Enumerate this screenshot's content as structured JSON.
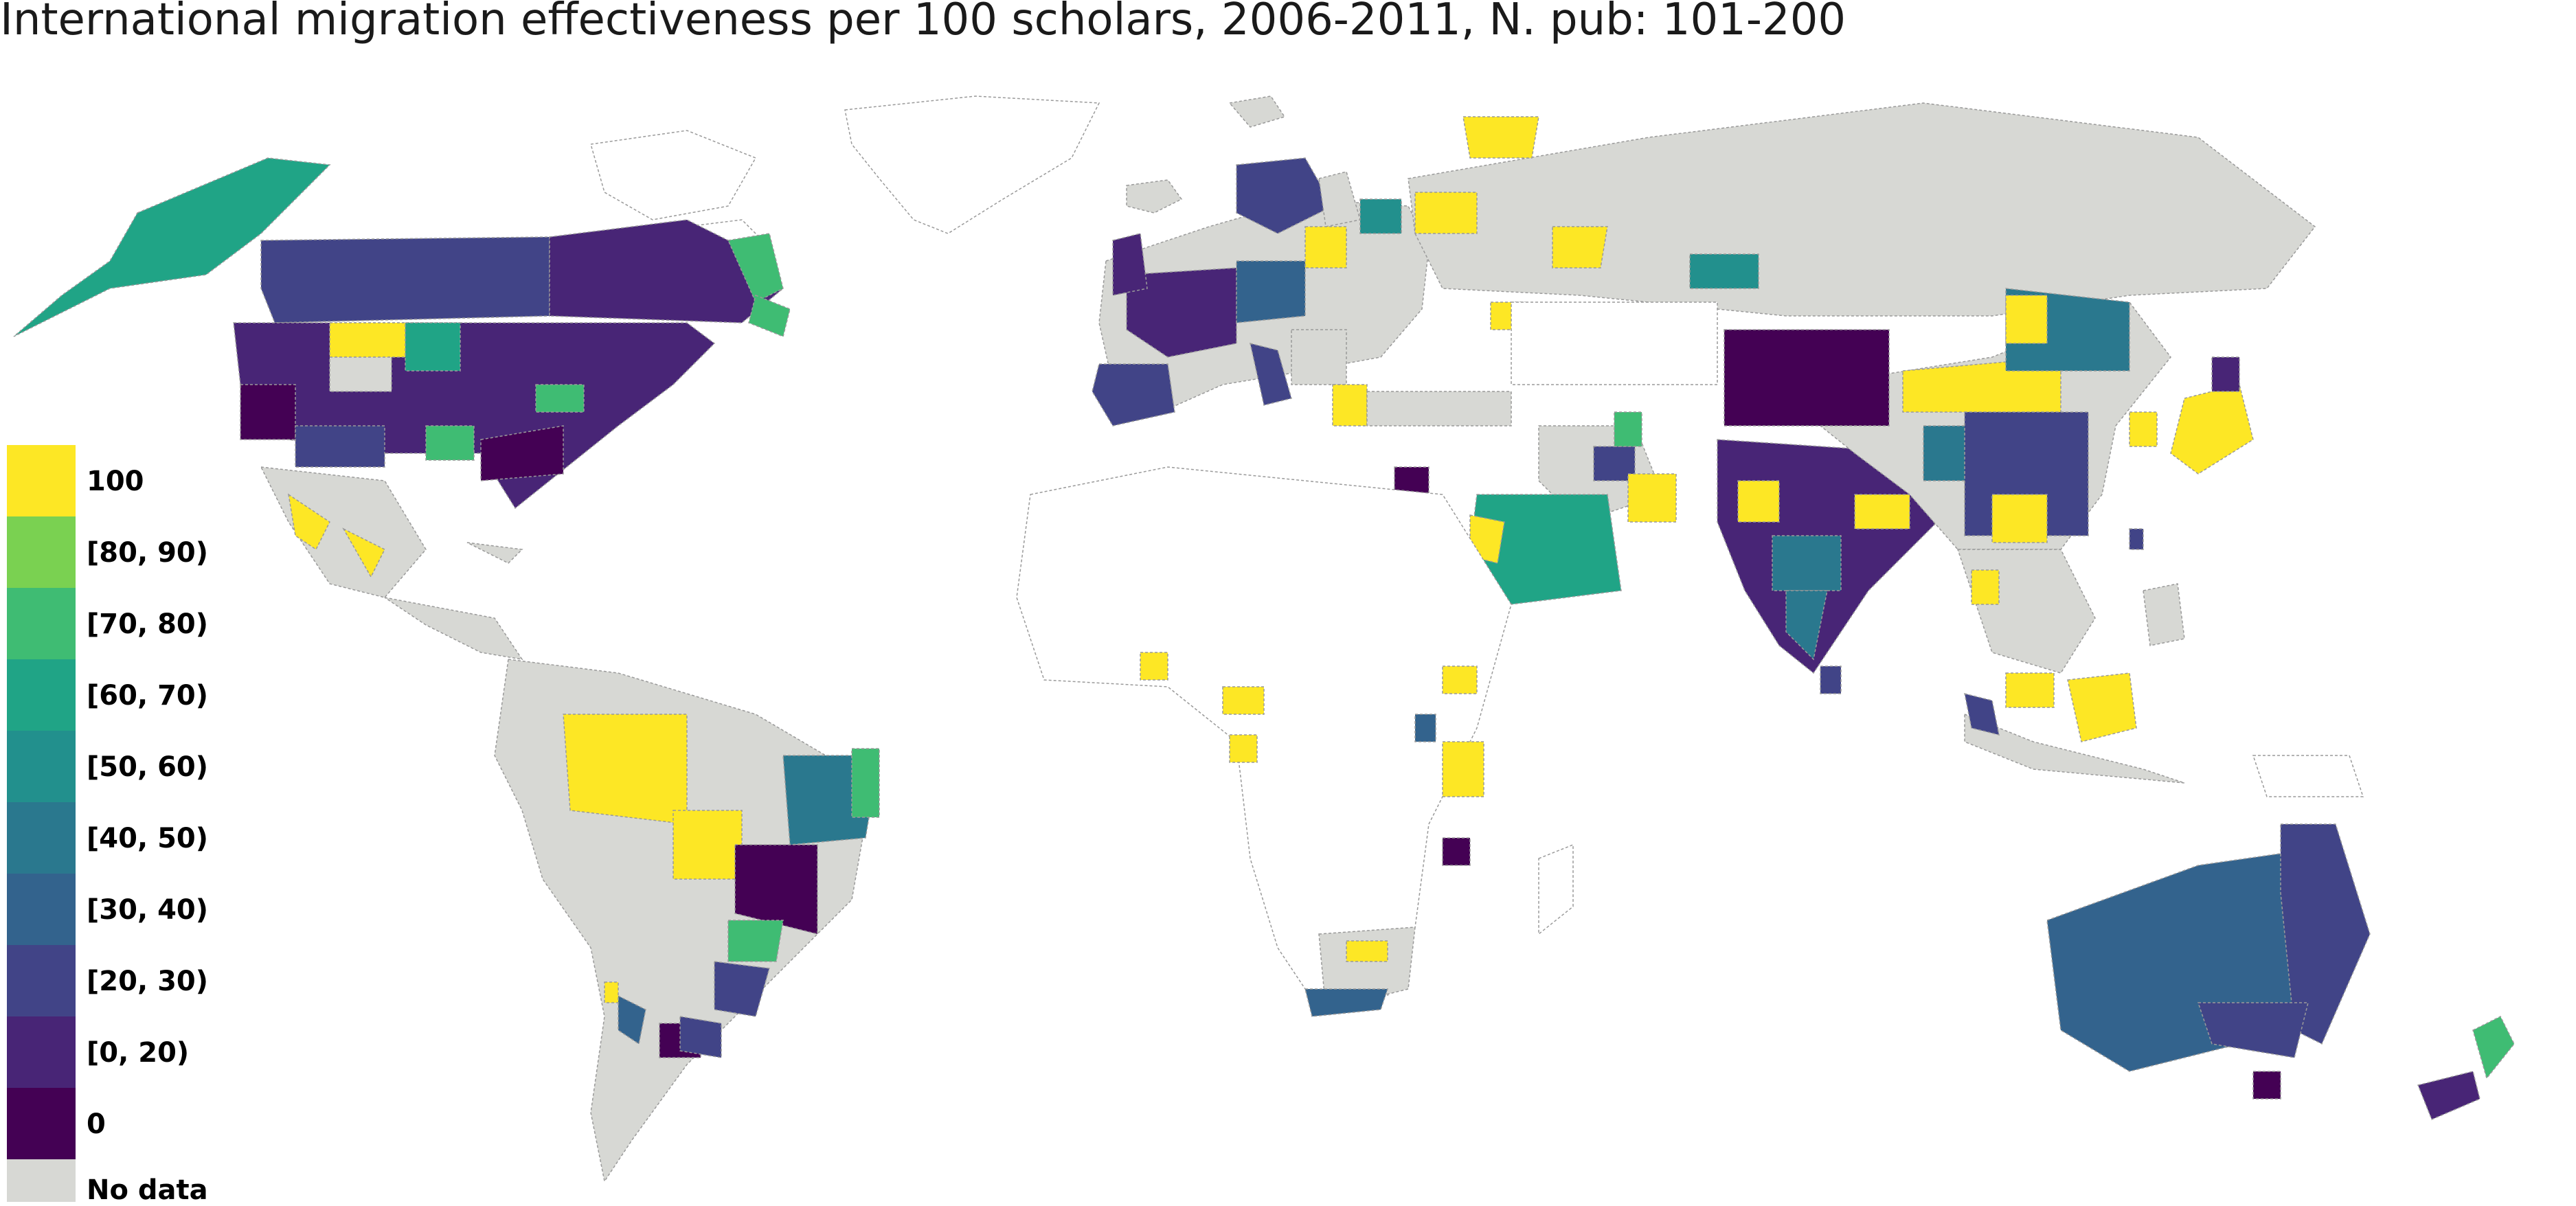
{
  "title": "International migration effectiveness per 100 scholars, 2006-2011, N. pub: 101-200",
  "colors": {
    "background": "#ffffff",
    "unshaded_land": "#ffffff",
    "boundary": "#9a9a9a",
    "nodata": "#d7d8d4",
    "v100": "#fde725",
    "v80_90": "#7ad151",
    "v70_80": "#3fbc73",
    "v60_70": "#20a486",
    "v50_60": "#22908d",
    "v40_50": "#2a788e",
    "v30_40": "#33638d",
    "v20_30": "#414487",
    "v0_20": "#482576",
    "v0": "#440154"
  },
  "legend": {
    "items": [
      {
        "label": "100",
        "color": "#fde725"
      },
      {
        "label": "[80, 90)",
        "color": "#7ad151"
      },
      {
        "label": "[70, 80)",
        "color": "#3fbc73"
      },
      {
        "label": "[60, 70)",
        "color": "#20a486"
      },
      {
        "label": "[50, 60)",
        "color": "#22908d"
      },
      {
        "label": "[40, 50)",
        "color": "#2a788e"
      },
      {
        "label": "[30, 40)",
        "color": "#33638d"
      },
      {
        "label": "[20, 30)",
        "color": "#414487"
      },
      {
        "label": "[0, 20)",
        "color": "#482576"
      },
      {
        "label": "0",
        "color": "#440154"
      },
      {
        "label": "No data",
        "color": "#d7d8d4"
      }
    ]
  }
}
